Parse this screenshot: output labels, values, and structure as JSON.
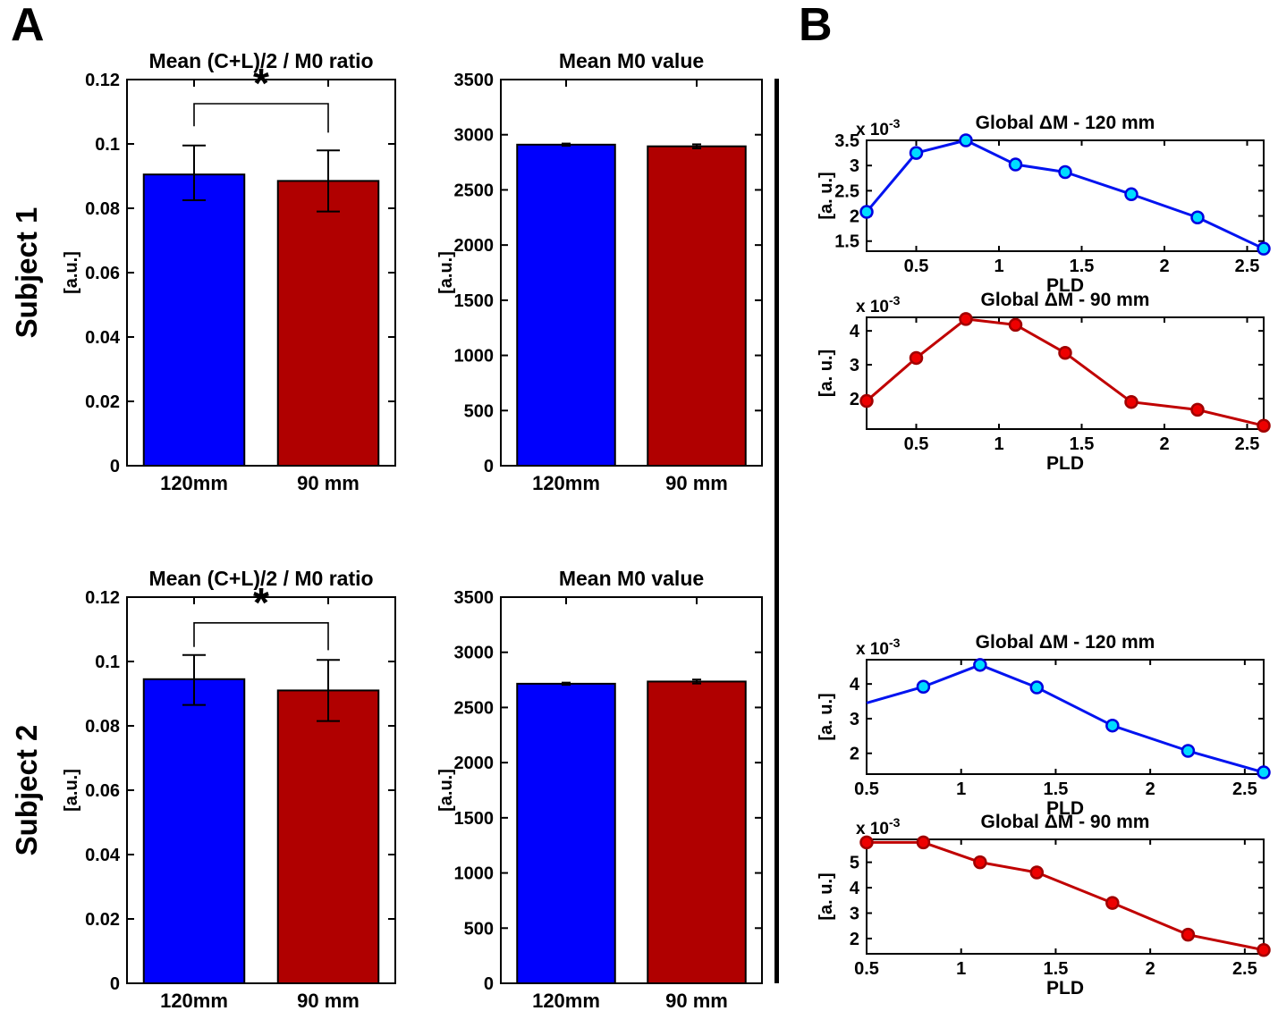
{
  "panels": {
    "a": "A",
    "b": "B"
  },
  "subjects": [
    {
      "label": "Subject 1"
    },
    {
      "label": "Subject 2"
    }
  ],
  "colors": {
    "bar_blue": "#0000FD",
    "bar_red": "#B00000",
    "line_blue": "#0013F0",
    "line_red": "#C00000",
    "marker_cyan": "#00DCFF",
    "marker_red": "#EE0000",
    "axis_black": "#000000"
  },
  "chart_data": [
    {
      "id": "s1_ratio",
      "type": "bar",
      "subject": "Subject 1",
      "title": "Mean (C+L)/2 / M0 ratio",
      "ylabel": "[a.u.]",
      "categories": [
        "120mm",
        "90 mm"
      ],
      "values": [
        0.0905,
        0.0885
      ],
      "err_low": [
        0.008,
        0.0095
      ],
      "err_high": [
        0.009,
        0.0095
      ],
      "bar_colors": [
        "#0000FD",
        "#B00000"
      ],
      "ylim": [
        0,
        0.12
      ],
      "yticks": [
        0,
        0.02,
        0.04,
        0.06,
        0.08,
        0.1,
        0.12
      ],
      "ytick_labels": [
        "0",
        "0.02",
        "0.04",
        "0.06",
        "0.08",
        "0.1",
        "0.12"
      ],
      "significance": {
        "star": "*",
        "bracket_y": 0.1125,
        "drop_left_to": 0.1055,
        "drop_right_to": 0.1035
      }
    },
    {
      "id": "s1_m0",
      "type": "bar",
      "subject": "Subject 1",
      "title": "Mean M0 value",
      "ylabel": "[a.u.]",
      "categories": [
        "120mm",
        "90 mm"
      ],
      "values": [
        2910,
        2895
      ],
      "err_low": [
        10,
        18
      ],
      "err_high": [
        10,
        18
      ],
      "bar_colors": [
        "#0000FD",
        "#B00000"
      ],
      "ylim": [
        0,
        3500
      ],
      "yticks": [
        0,
        500,
        1000,
        1500,
        2000,
        2500,
        3000,
        3500
      ],
      "ytick_labels": [
        "0",
        "500",
        "1000",
        "1500",
        "2000",
        "2500",
        "3000",
        "3500"
      ],
      "significance": null
    },
    {
      "id": "s2_ratio",
      "type": "bar",
      "subject": "Subject 2",
      "title": "Mean (C+L)/2 / M0 ratio",
      "ylabel": "[a.u.]",
      "categories": [
        "120mm",
        "90 mm"
      ],
      "values": [
        0.0945,
        0.091
      ],
      "err_low": [
        0.008,
        0.0095
      ],
      "err_high": [
        0.0075,
        0.0095
      ],
      "bar_colors": [
        "#0000FD",
        "#B00000"
      ],
      "ylim": [
        0,
        0.12
      ],
      "yticks": [
        0,
        0.02,
        0.04,
        0.06,
        0.08,
        0.1,
        0.12
      ],
      "ytick_labels": [
        "0",
        "0.02",
        "0.04",
        "0.06",
        "0.08",
        "0.1",
        "0.12"
      ],
      "significance": {
        "star": "*",
        "bracket_y": 0.112,
        "drop_left_to": 0.1045,
        "drop_right_to": 0.1035
      }
    },
    {
      "id": "s2_m0",
      "type": "bar",
      "subject": "Subject 2",
      "title": "Mean M0 value",
      "ylabel": "[a.u.]",
      "categories": [
        "120mm",
        "90 mm"
      ],
      "values": [
        2715,
        2735
      ],
      "err_low": [
        10,
        18
      ],
      "err_high": [
        10,
        18
      ],
      "bar_colors": [
        "#0000FD",
        "#B00000"
      ],
      "ylim": [
        0,
        3500
      ],
      "yticks": [
        0,
        500,
        1000,
        1500,
        2000,
        2500,
        3000,
        3500
      ],
      "ytick_labels": [
        "0",
        "500",
        "1000",
        "1500",
        "2000",
        "2500",
        "3000",
        "3500"
      ],
      "significance": null
    },
    {
      "id": "s1_120",
      "type": "line",
      "subject": "Subject 1",
      "title": "Global ΔM - 120 mm",
      "xlabel": "PLD",
      "ylabel": "[a. u.]",
      "exponent": {
        "base": "x 10",
        "exp": "-3"
      },
      "x": [
        0.2,
        0.5,
        0.8,
        1.1,
        1.4,
        1.8,
        2.2,
        2.6
      ],
      "y": [
        2.08,
        3.25,
        3.5,
        3.02,
        2.87,
        2.43,
        1.97,
        1.35
      ],
      "markers": [
        true,
        true,
        true,
        true,
        true,
        true,
        true,
        true
      ],
      "xlim": [
        0.2,
        2.6
      ],
      "ylim": [
        1.3,
        3.5
      ],
      "xticks": [
        0.5,
        1,
        1.5,
        2,
        2.5
      ],
      "xtick_labels": [
        "0.5",
        "1",
        "1.5",
        "2",
        "2.5"
      ],
      "yticks": [
        1.5,
        2,
        2.5,
        3,
        3.5
      ],
      "ytick_labels": [
        "1.5",
        "2",
        "2.5",
        "3",
        "3.5"
      ],
      "line_color": "#0013F0",
      "marker_fill": "#00DCFF",
      "marker_edge": "#0000E0"
    },
    {
      "id": "s1_90",
      "type": "line",
      "subject": "Subject 1",
      "title": "Global ΔM - 90 mm",
      "xlabel": "PLD",
      "ylabel": "[a. u.]",
      "exponent": {
        "base": "x 10",
        "exp": "-3"
      },
      "x": [
        0.2,
        0.5,
        0.8,
        1.1,
        1.4,
        1.8,
        2.2,
        2.6
      ],
      "y": [
        1.93,
        3.2,
        4.35,
        4.18,
        3.35,
        1.9,
        1.67,
        1.2
      ],
      "markers": [
        true,
        true,
        true,
        true,
        true,
        true,
        true,
        true
      ],
      "xlim": [
        0.2,
        2.6
      ],
      "ylim": [
        1.1,
        4.4
      ],
      "xticks": [
        0.5,
        1,
        1.5,
        2,
        2.5
      ],
      "xtick_labels": [
        "0.5",
        "1",
        "1.5",
        "2",
        "2.5"
      ],
      "yticks": [
        2,
        3,
        4
      ],
      "ytick_labels": [
        "2",
        "3",
        "4"
      ],
      "line_color": "#C00000",
      "marker_fill": "#EE0000",
      "marker_edge": "#A00000"
    },
    {
      "id": "s2_120",
      "type": "line",
      "subject": "Subject 2",
      "title": "Global ΔM - 120 mm",
      "xlabel": "PLD",
      "ylabel": "[a. u.]",
      "exponent": {
        "base": "x 10",
        "exp": "-3"
      },
      "x": [
        0.5,
        0.8,
        1.1,
        1.4,
        1.8,
        2.2,
        2.6
      ],
      "y": [
        3.45,
        3.92,
        4.55,
        3.9,
        2.8,
        2.07,
        1.45
      ],
      "markers": [
        false,
        true,
        true,
        true,
        true,
        true,
        true
      ],
      "xlim": [
        0.5,
        2.6
      ],
      "ylim": [
        1.4,
        4.7
      ],
      "xticks": [
        0.5,
        1,
        1.5,
        2,
        2.5
      ],
      "xtick_labels": [
        "0.5",
        "1",
        "1.5",
        "2",
        "2.5"
      ],
      "yticks": [
        2,
        3,
        4
      ],
      "ytick_labels": [
        "2",
        "3",
        "4"
      ],
      "line_color": "#0013F0",
      "marker_fill": "#00DCFF",
      "marker_edge": "#0000E0"
    },
    {
      "id": "s2_90",
      "type": "line",
      "subject": "Subject 2",
      "title": "Global ΔM - 90 mm",
      "xlabel": "PLD",
      "ylabel": "[a. u.]",
      "exponent": {
        "base": "x 10",
        "exp": "-3"
      },
      "x": [
        0.5,
        0.8,
        1.1,
        1.4,
        1.8,
        2.2,
        2.6
      ],
      "y": [
        5.78,
        5.78,
        5.0,
        4.6,
        3.4,
        2.15,
        1.55
      ],
      "markers": [
        true,
        true,
        true,
        true,
        true,
        true,
        true
      ],
      "xlim": [
        0.5,
        2.6
      ],
      "ylim": [
        1.4,
        5.9
      ],
      "xticks": [
        0.5,
        1,
        1.5,
        2,
        2.5
      ],
      "xtick_labels": [
        "0.5",
        "1",
        "1.5",
        "2",
        "2.5"
      ],
      "yticks": [
        2,
        3,
        4,
        5
      ],
      "ytick_labels": [
        "2",
        "3",
        "4",
        "5"
      ],
      "line_color": "#C00000",
      "marker_fill": "#EE0000",
      "marker_edge": "#A00000"
    }
  ]
}
